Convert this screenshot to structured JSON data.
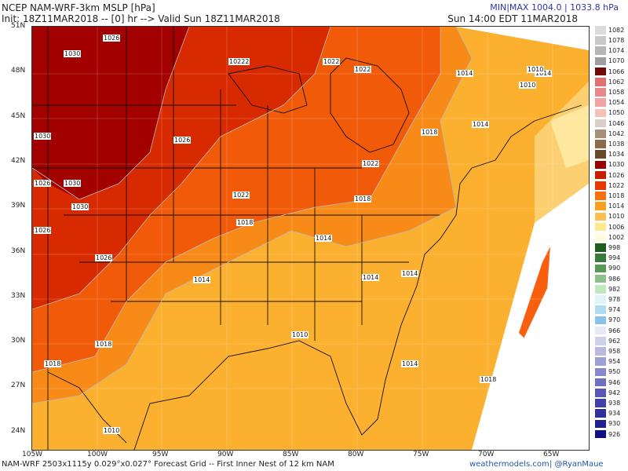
{
  "header": {
    "title": "NCEP NAM-WRF-3km MSLP [hPa]",
    "init_line": "Init: 18Z11MAR2018 -- [0] hr --> Valid Sun 18Z11MAR2018",
    "valid_local": "Sun 14:00 EDT 11MAR2018",
    "minmax": "MIN|MAX 1004.0 | 1033.8 hPa"
  },
  "footer": {
    "left": "NAM-WRF 2503x1115y 0.029°x0.027° Forecast Grid -- First Inner Nest of 12 km NAM",
    "site": "weathermodels.com",
    "credit": "| @RyanMaue"
  },
  "axes": {
    "lat_labels": [
      "51N",
      "48N",
      "45N",
      "42N",
      "39N",
      "36N",
      "33N",
      "30N",
      "27N",
      "24N"
    ],
    "lon_labels": [
      "105W",
      "100W",
      "95W",
      "90W",
      "85W",
      "80W",
      "75W",
      "70W",
      "65W"
    ]
  },
  "legend": {
    "levels": [
      {
        "label": "1082",
        "color": "#dcdcdc"
      },
      {
        "label": "1078",
        "color": "#c9c9c9"
      },
      {
        "label": "1074",
        "color": "#b6b6b6"
      },
      {
        "label": "1070",
        "color": "#9e9e9e"
      },
      {
        "label": "1066",
        "color": "#6e0a0a"
      },
      {
        "label": "1062",
        "color": "#e07070"
      },
      {
        "label": "1058",
        "color": "#e88a8a"
      },
      {
        "label": "1054",
        "color": "#f0a4a4"
      },
      {
        "label": "1050",
        "color": "#f6c0b8"
      },
      {
        "label": "1046",
        "color": "#d8d0c8"
      },
      {
        "label": "1042",
        "color": "#a89078"
      },
      {
        "label": "1038",
        "color": "#8a6a4a"
      },
      {
        "label": "1034",
        "color": "#6a4a2a"
      },
      {
        "label": "1030",
        "color": "#9a0000"
      },
      {
        "label": "1026",
        "color": "#c81e00"
      },
      {
        "label": "1022",
        "color": "#e83800"
      },
      {
        "label": "1018",
        "color": "#f87010"
      },
      {
        "label": "1014",
        "color": "#f8a020"
      },
      {
        "label": "1010",
        "color": "#fcc050"
      },
      {
        "label": "1006",
        "color": "#fee890"
      },
      {
        "label": "1002",
        "color": "#fffbe0"
      },
      {
        "label": "998",
        "color": "#1f5e1f"
      },
      {
        "label": "994",
        "color": "#3a7a3a"
      },
      {
        "label": "990",
        "color": "#5a985a"
      },
      {
        "label": "986",
        "color": "#8cc08c"
      },
      {
        "label": "982",
        "color": "#c0e8c0"
      },
      {
        "label": "978",
        "color": "#dff4f8"
      },
      {
        "label": "974",
        "color": "#b0dcf0"
      },
      {
        "label": "970",
        "color": "#88c4e8"
      },
      {
        "label": "966",
        "color": "#e8e8f4"
      },
      {
        "label": "962",
        "color": "#d0d0ea"
      },
      {
        "label": "958",
        "color": "#b8b8e0"
      },
      {
        "label": "954",
        "color": "#a0a0d8"
      },
      {
        "label": "950",
        "color": "#8888cc"
      },
      {
        "label": "946",
        "color": "#7070c0"
      },
      {
        "label": "942",
        "color": "#5858b4"
      },
      {
        "label": "938",
        "color": "#4040a8"
      },
      {
        "label": "934",
        "color": "#30309c"
      },
      {
        "label": "930",
        "color": "#202090"
      },
      {
        "label": "926",
        "color": "#101080"
      }
    ]
  },
  "isobar_labels": [
    "1030",
    "1026",
    "1022",
    "1018",
    "1014",
    "1010"
  ]
}
